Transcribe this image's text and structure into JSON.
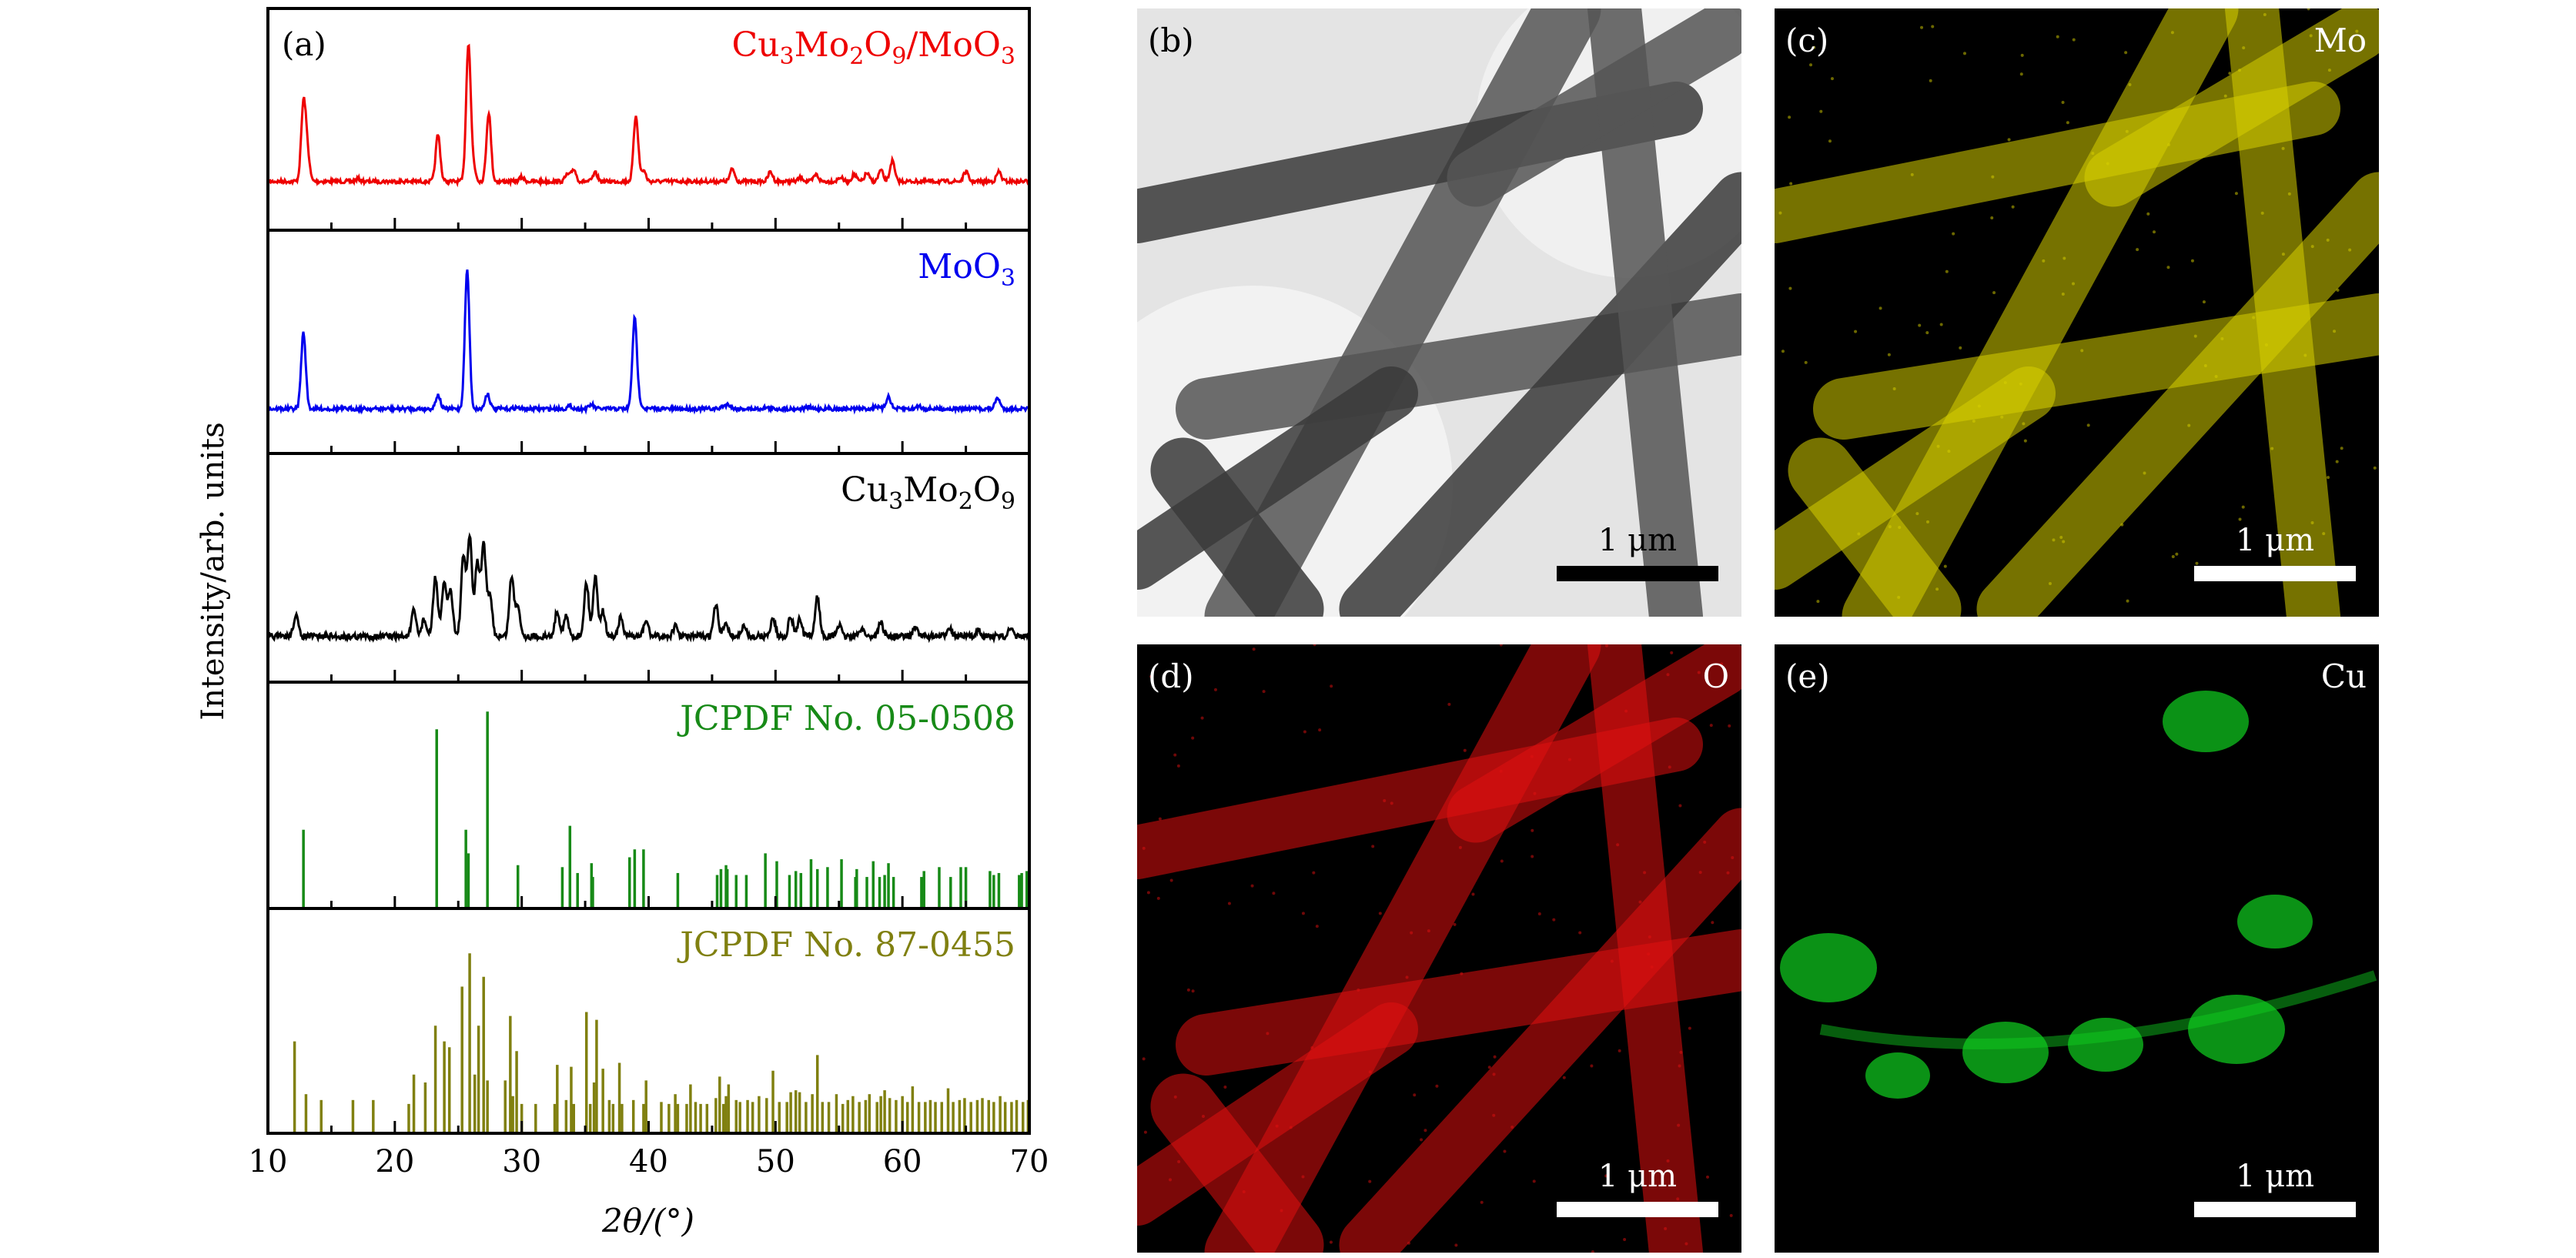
{
  "chart_data": {
    "type": "line",
    "panel_label": "(a)",
    "xlabel": "2θ/(°)",
    "ylabel": "Intensity/arb. units",
    "xlim": [
      10,
      70
    ],
    "xticks": [
      10,
      20,
      30,
      40,
      50,
      60,
      70
    ],
    "minor_step": 5,
    "series": [
      {
        "name": "Cu3Mo2O9/MoO3",
        "label_main": [
          "Cu",
          "3",
          "Mo",
          "2",
          "O",
          "9",
          "/MoO",
          "3"
        ],
        "color": "#ee0000",
        "kind": "pattern",
        "baseline": 0.22,
        "peaks": [
          [
            12.8,
            0.55
          ],
          [
            13.1,
            0.2
          ],
          [
            17.1,
            0.02
          ],
          [
            23.4,
            0.34
          ],
          [
            25.8,
            1.0
          ],
          [
            26.2,
            0.1
          ],
          [
            27.4,
            0.5
          ],
          [
            30.0,
            0.03
          ],
          [
            33.6,
            0.05
          ],
          [
            34.1,
            0.09
          ],
          [
            35.8,
            0.06
          ],
          [
            39.0,
            0.48
          ],
          [
            39.6,
            0.08
          ],
          [
            46.6,
            0.09
          ],
          [
            49.6,
            0.07
          ],
          [
            52.0,
            0.03
          ],
          [
            53.2,
            0.05
          ],
          [
            55.1,
            0.03
          ],
          [
            56.2,
            0.05
          ],
          [
            57.2,
            0.06
          ],
          [
            58.3,
            0.08
          ],
          [
            59.2,
            0.15
          ],
          [
            65.0,
            0.07
          ],
          [
            67.6,
            0.07
          ]
        ]
      },
      {
        "name": "MoO3",
        "label_main": [
          "MoO",
          "3"
        ],
        "color": "#0000ee",
        "kind": "pattern",
        "baseline": 0.2,
        "peaks": [
          [
            12.8,
            0.55
          ],
          [
            23.4,
            0.1
          ],
          [
            25.7,
            1.0
          ],
          [
            27.3,
            0.11
          ],
          [
            29.6,
            0.01
          ],
          [
            33.8,
            0.02
          ],
          [
            35.5,
            0.03
          ],
          [
            38.9,
            0.65
          ],
          [
            39.3,
            0.04
          ],
          [
            45.9,
            0.02
          ],
          [
            46.3,
            0.03
          ],
          [
            49.2,
            0.01
          ],
          [
            52.5,
            0.01
          ],
          [
            57.9,
            0.02
          ],
          [
            58.9,
            0.09
          ],
          [
            61.3,
            0.02
          ],
          [
            67.5,
            0.08
          ]
        ]
      },
      {
        "name": "Cu3Mo2O9",
        "label_main": [
          "Cu",
          "3",
          "Mo",
          "2",
          "O",
          "9"
        ],
        "color": "#000000",
        "kind": "pattern",
        "baseline": 0.2,
        "peaks": [
          [
            12.2,
            0.15
          ],
          [
            21.5,
            0.18
          ],
          [
            22.3,
            0.12
          ],
          [
            23.2,
            0.42
          ],
          [
            23.9,
            0.38
          ],
          [
            24.4,
            0.32
          ],
          [
            25.4,
            0.55
          ],
          [
            25.9,
            0.7
          ],
          [
            26.5,
            0.52
          ],
          [
            27.0,
            0.65
          ],
          [
            27.5,
            0.28
          ],
          [
            29.2,
            0.42
          ],
          [
            29.7,
            0.22
          ],
          [
            32.8,
            0.18
          ],
          [
            33.5,
            0.14
          ],
          [
            35.1,
            0.38
          ],
          [
            35.8,
            0.42
          ],
          [
            36.4,
            0.18
          ],
          [
            37.8,
            0.13
          ],
          [
            39.8,
            0.11
          ],
          [
            42.1,
            0.07
          ],
          [
            45.3,
            0.22
          ],
          [
            46.1,
            0.1
          ],
          [
            47.5,
            0.07
          ],
          [
            49.8,
            0.13
          ],
          [
            51.2,
            0.14
          ],
          [
            51.9,
            0.12
          ],
          [
            53.3,
            0.28
          ],
          [
            55.0,
            0.08
          ],
          [
            56.8,
            0.06
          ],
          [
            58.3,
            0.1
          ],
          [
            61.0,
            0.07
          ],
          [
            63.7,
            0.07
          ],
          [
            66.0,
            0.05
          ],
          [
            68.5,
            0.05
          ]
        ]
      },
      {
        "name": "JCPDF No. 05-0508",
        "label_main": [
          "JCPDF No. 05-0508"
        ],
        "color": "#178a17",
        "kind": "sticks",
        "peaks": [
          [
            12.8,
            0.4
          ],
          [
            23.3,
            0.91
          ],
          [
            25.6,
            0.4
          ],
          [
            25.8,
            0.28
          ],
          [
            27.3,
            1.0
          ],
          [
            29.7,
            0.22
          ],
          [
            33.2,
            0.21
          ],
          [
            33.8,
            0.42
          ],
          [
            34.4,
            0.18
          ],
          [
            35.5,
            0.23
          ],
          [
            35.6,
            0.16
          ],
          [
            38.5,
            0.26
          ],
          [
            38.9,
            0.3
          ],
          [
            39.6,
            0.3
          ],
          [
            42.3,
            0.18
          ],
          [
            45.4,
            0.17
          ],
          [
            45.7,
            0.2
          ],
          [
            46.1,
            0.22
          ],
          [
            46.2,
            0.2
          ],
          [
            46.9,
            0.17
          ],
          [
            47.7,
            0.17
          ],
          [
            49.2,
            0.28
          ],
          [
            50.1,
            0.24
          ],
          [
            51.1,
            0.17
          ],
          [
            51.6,
            0.19
          ],
          [
            52.0,
            0.18
          ],
          [
            52.8,
            0.25
          ],
          [
            53.3,
            0.2
          ],
          [
            54.1,
            0.21
          ],
          [
            55.2,
            0.25
          ],
          [
            56.3,
            0.16
          ],
          [
            56.4,
            0.2
          ],
          [
            57.2,
            0.16
          ],
          [
            57.7,
            0.24
          ],
          [
            58.2,
            0.16
          ],
          [
            58.6,
            0.17
          ],
          [
            58.9,
            0.23
          ],
          [
            59.3,
            0.16
          ],
          [
            61.5,
            0.16
          ],
          [
            61.7,
            0.19
          ],
          [
            62.9,
            0.21
          ],
          [
            63.8,
            0.16
          ],
          [
            64.6,
            0.21
          ],
          [
            65.0,
            0.21
          ],
          [
            66.9,
            0.19
          ],
          [
            67.2,
            0.17
          ],
          [
            67.6,
            0.18
          ],
          [
            69.2,
            0.17
          ],
          [
            69.4,
            0.18
          ],
          [
            69.8,
            0.19
          ],
          [
            70.0,
            0.19
          ]
        ]
      },
      {
        "name": "JCPDF No. 87-0455",
        "label_main": [
          "JCPDF No. 87-0455"
        ],
        "color": "#808010",
        "kind": "sticks",
        "peaks": [
          [
            12.1,
            0.47
          ],
          [
            13.0,
            0.2
          ],
          [
            14.2,
            0.17
          ],
          [
            16.7,
            0.17
          ],
          [
            18.3,
            0.17
          ],
          [
            21.1,
            0.15
          ],
          [
            21.5,
            0.3
          ],
          [
            22.4,
            0.26
          ],
          [
            23.2,
            0.55
          ],
          [
            23.9,
            0.47
          ],
          [
            24.3,
            0.44
          ],
          [
            25.3,
            0.75
          ],
          [
            25.9,
            0.92
          ],
          [
            26.3,
            0.3
          ],
          [
            26.6,
            0.55
          ],
          [
            27.0,
            0.8
          ],
          [
            27.3,
            0.27
          ],
          [
            28.7,
            0.27
          ],
          [
            29.1,
            0.6
          ],
          [
            29.3,
            0.19
          ],
          [
            29.6,
            0.42
          ],
          [
            30.0,
            0.15
          ],
          [
            31.1,
            0.15
          ],
          [
            32.6,
            0.15
          ],
          [
            32.8,
            0.35
          ],
          [
            33.5,
            0.17
          ],
          [
            33.9,
            0.34
          ],
          [
            34.1,
            0.15
          ],
          [
            35.1,
            0.62
          ],
          [
            35.4,
            0.15
          ],
          [
            35.7,
            0.26
          ],
          [
            35.9,
            0.58
          ],
          [
            36.4,
            0.33
          ],
          [
            36.9,
            0.17
          ],
          [
            37.2,
            0.15
          ],
          [
            37.7,
            0.36
          ],
          [
            37.9,
            0.15
          ],
          [
            38.8,
            0.17
          ],
          [
            39.6,
            0.15
          ],
          [
            39.8,
            0.27
          ],
          [
            41.0,
            0.16
          ],
          [
            41.6,
            0.15
          ],
          [
            42.1,
            0.2
          ],
          [
            42.3,
            0.15
          ],
          [
            43.0,
            0.15
          ],
          [
            43.3,
            0.25
          ],
          [
            43.7,
            0.16
          ],
          [
            44.1,
            0.15
          ],
          [
            44.6,
            0.15
          ],
          [
            45.3,
            0.18
          ],
          [
            45.6,
            0.29
          ],
          [
            45.9,
            0.15
          ],
          [
            46.1,
            0.19
          ],
          [
            46.3,
            0.25
          ],
          [
            46.9,
            0.17
          ],
          [
            47.2,
            0.16
          ],
          [
            47.8,
            0.17
          ],
          [
            48.2,
            0.16
          ],
          [
            48.7,
            0.19
          ],
          [
            49.3,
            0.18
          ],
          [
            49.8,
            0.32
          ],
          [
            50.3,
            0.16
          ],
          [
            50.9,
            0.16
          ],
          [
            51.2,
            0.21
          ],
          [
            51.6,
            0.22
          ],
          [
            51.9,
            0.21
          ],
          [
            52.4,
            0.16
          ],
          [
            52.9,
            0.2
          ],
          [
            53.3,
            0.4
          ],
          [
            53.7,
            0.16
          ],
          [
            54.2,
            0.16
          ],
          [
            54.8,
            0.2
          ],
          [
            55.3,
            0.15
          ],
          [
            55.7,
            0.17
          ],
          [
            56.1,
            0.19
          ],
          [
            56.6,
            0.16
          ],
          [
            57.1,
            0.17
          ],
          [
            57.4,
            0.2
          ],
          [
            58.0,
            0.16
          ],
          [
            58.3,
            0.19
          ],
          [
            58.6,
            0.22
          ],
          [
            59.0,
            0.18
          ],
          [
            59.5,
            0.17
          ],
          [
            60.0,
            0.19
          ],
          [
            60.4,
            0.16
          ],
          [
            60.8,
            0.24
          ],
          [
            61.3,
            0.16
          ],
          [
            61.8,
            0.16
          ],
          [
            62.2,
            0.17
          ],
          [
            62.6,
            0.16
          ],
          [
            63.1,
            0.16
          ],
          [
            63.6,
            0.23
          ],
          [
            64.0,
            0.16
          ],
          [
            64.5,
            0.17
          ],
          [
            64.9,
            0.18
          ],
          [
            65.4,
            0.16
          ],
          [
            65.9,
            0.17
          ],
          [
            66.3,
            0.18
          ],
          [
            66.8,
            0.17
          ],
          [
            67.2,
            0.16
          ],
          [
            67.7,
            0.19
          ],
          [
            68.1,
            0.16
          ],
          [
            68.6,
            0.16
          ],
          [
            69.0,
            0.17
          ],
          [
            69.5,
            0.16
          ],
          [
            69.9,
            0.17
          ]
        ]
      }
    ]
  },
  "micrographs": [
    {
      "label": "(b)",
      "element": "",
      "scale": "1 μm",
      "kind": "tem"
    },
    {
      "label": "(c)",
      "element": "Mo",
      "scale": "1 μm",
      "kind": "map",
      "color": "#d8d000"
    },
    {
      "label": "(d)",
      "element": "O",
      "scale": "1 μm",
      "kind": "map",
      "color": "#e01010"
    },
    {
      "label": "(e)",
      "element": "Cu",
      "scale": "1 μm",
      "kind": "cu",
      "color": "#10d020"
    }
  ]
}
